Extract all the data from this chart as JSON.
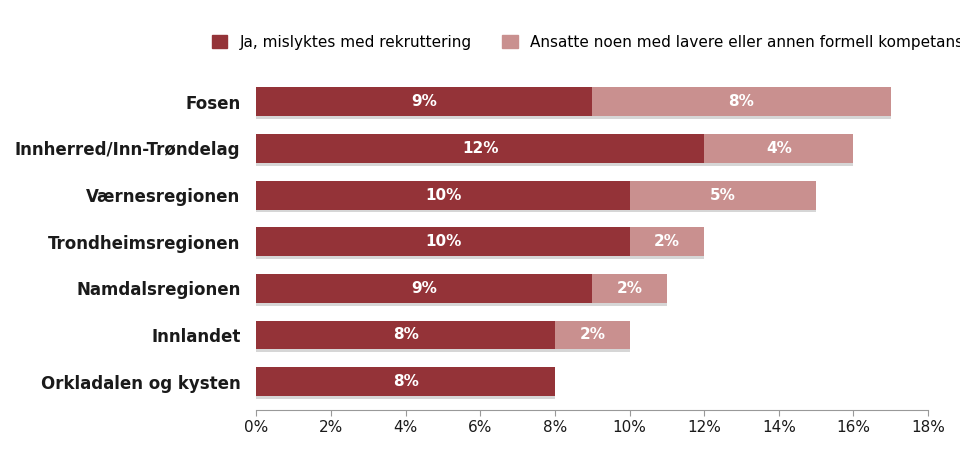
{
  "categories": [
    "Fosen",
    "Innherred/Inn-Trøndelag",
    "Værnesregionen",
    "Trondheimsregionen",
    "Namdalsregionen",
    "Innlandet",
    "Orkladalen og kysten"
  ],
  "series1_values": [
    9,
    12,
    10,
    10,
    9,
    8,
    8
  ],
  "series2_values": [
    8,
    4,
    5,
    2,
    2,
    2,
    0
  ],
  "series1_label": "Ja, mislyktes med rekruttering",
  "series2_label": "Ansatte noen med lavere eller annen formell kompetanse",
  "series1_color": "#943338",
  "series2_color": "#C9908F",
  "shadow_color": "#bbbbbb",
  "xlim": [
    0,
    18
  ],
  "xticks": [
    0,
    2,
    4,
    6,
    8,
    10,
    12,
    14,
    16,
    18
  ],
  "xtick_labels": [
    "0%",
    "2%",
    "4%",
    "6%",
    "8%",
    "10%",
    "12%",
    "14%",
    "16%",
    "18%"
  ],
  "bar_height": 0.62,
  "label_fontsize": 11,
  "tick_fontsize": 11,
  "ytick_fontsize": 12,
  "legend_fontsize": 11,
  "background_color": "#ffffff",
  "text_color": "#1a1a1a"
}
